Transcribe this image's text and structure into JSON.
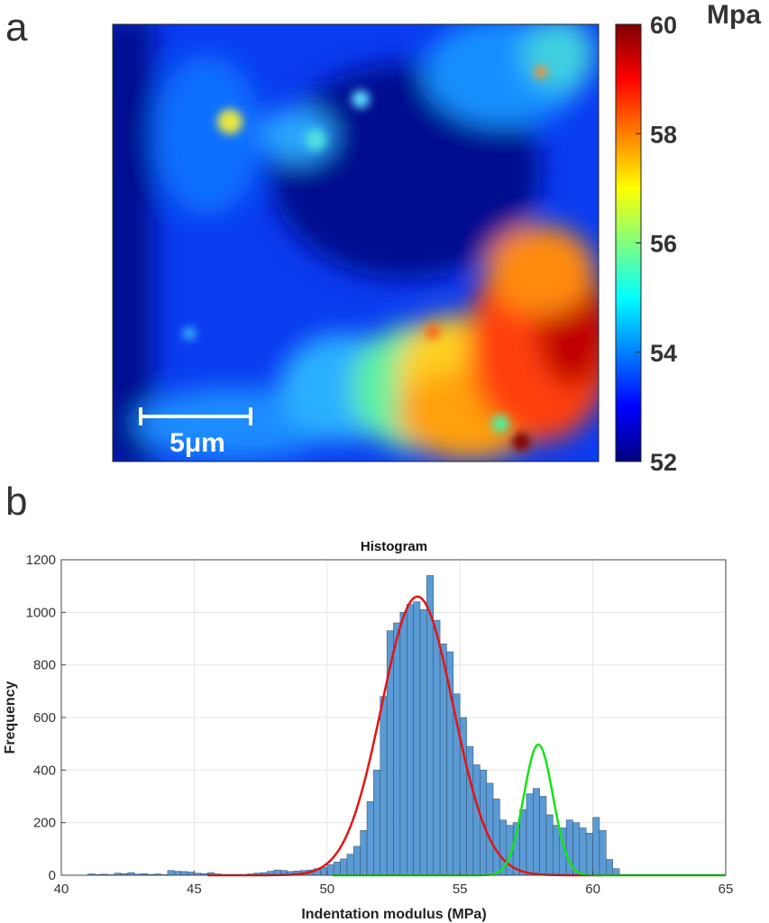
{
  "panel_a_label": "a",
  "panel_b_label": "b",
  "chart_data": [
    {
      "type": "heatmap",
      "title": "",
      "colormap": "jet",
      "colorbar_unit": "Mpa",
      "colorbar_range": [
        52,
        60
      ],
      "colorbar_ticks": [
        "52",
        "54",
        "56",
        "58",
        "60"
      ],
      "scale_bar_label": "5μm",
      "description_regions": [
        "low modulus (dark blue) upper-middle and left edge",
        "high modulus (red) lower-right region"
      ]
    },
    {
      "type": "bar",
      "title": "Histogram",
      "xlabel": "Indentation modulus (MPa)",
      "ylabel": "Frequency",
      "xlim": [
        40,
        65
      ],
      "ylim": [
        0,
        1200
      ],
      "xticks": [
        "40",
        "45",
        "50",
        "55",
        "60",
        "65"
      ],
      "yticks": [
        "0",
        "200",
        "400",
        "600",
        "800",
        "1000",
        "1200"
      ],
      "bin_width": 0.25,
      "bin_starts": [
        41.0,
        41.25,
        41.5,
        41.75,
        42.0,
        42.25,
        42.5,
        42.75,
        43.0,
        43.25,
        43.5,
        43.75,
        44.0,
        44.25,
        44.5,
        44.75,
        45.0,
        45.25,
        45.5,
        45.75,
        46.0,
        46.25,
        46.5,
        46.75,
        47.0,
        47.25,
        47.5,
        47.75,
        48.0,
        48.25,
        48.5,
        48.75,
        49.0,
        49.25,
        49.5,
        49.75,
        50.0,
        50.25,
        50.5,
        50.75,
        51.0,
        51.25,
        51.5,
        51.75,
        52.0,
        52.25,
        52.5,
        52.75,
        53.0,
        53.25,
        53.5,
        53.75,
        54.0,
        54.25,
        54.5,
        54.75,
        55.0,
        55.25,
        55.5,
        55.75,
        56.0,
        56.25,
        56.5,
        56.75,
        57.0,
        57.25,
        57.5,
        57.75,
        58.0,
        58.25,
        58.5,
        58.75,
        59.0,
        59.25,
        59.5,
        59.75,
        60.0,
        60.25,
        60.5,
        60.75
      ],
      "values": [
        5,
        3,
        4,
        2,
        8,
        6,
        10,
        4,
        6,
        3,
        5,
        2,
        18,
        15,
        14,
        12,
        8,
        6,
        10,
        5,
        2,
        1,
        1,
        2,
        5,
        8,
        10,
        15,
        20,
        18,
        14,
        16,
        18,
        20,
        25,
        30,
        40,
        50,
        62,
        80,
        110,
        170,
        280,
        400,
        680,
        930,
        960,
        1000,
        1030,
        1040,
        1010,
        1140,
        970,
        880,
        850,
        690,
        600,
        490,
        420,
        400,
        350,
        290,
        210,
        190,
        200,
        250,
        310,
        330,
        300,
        230,
        190,
        180,
        210,
        200,
        180,
        160,
        220,
        170,
        60,
        25
      ],
      "fits": [
        {
          "name": "Gaussian fit 1",
          "color": "#e41414",
          "mean": 53.4,
          "sigma": 1.35,
          "amplitude": 1060
        },
        {
          "name": "Gaussian fit 2",
          "color": "#17e317",
          "mean": 57.95,
          "sigma": 0.55,
          "amplitude": 497
        }
      ],
      "bar_color": "#5b9bd5"
    }
  ]
}
